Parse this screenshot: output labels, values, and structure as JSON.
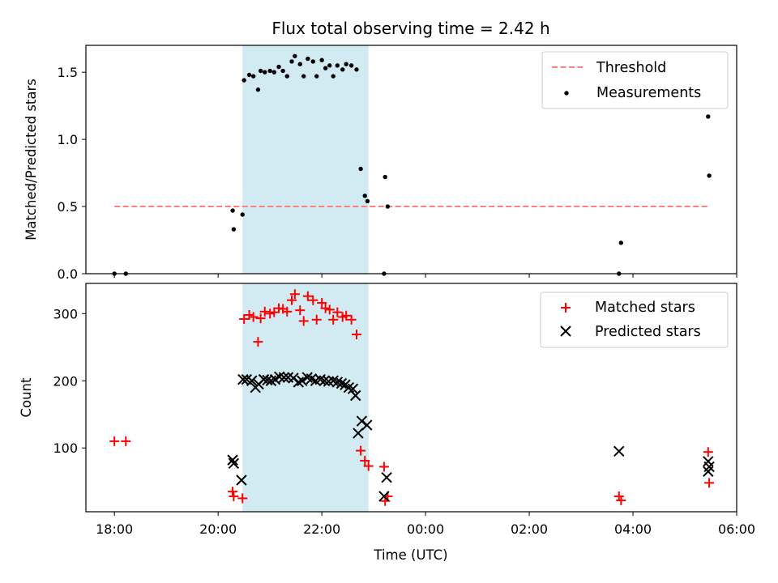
{
  "chart_data": [
    {
      "type": "scatter",
      "title": "Flux total observing time = 2.42 h",
      "xlabel": "",
      "ylabel": "Matched/Predicted stars",
      "ylim": [
        0,
        1.7
      ],
      "yticks": [
        "0.0",
        "0.5",
        "1.0",
        "1.5"
      ],
      "legend": {
        "placement": "top-right",
        "entries": [
          "Threshold",
          "Measurements"
        ]
      },
      "shaded_span_hours": [
        20.47,
        22.9
      ],
      "threshold": {
        "name": "Threshold",
        "value": 0.5,
        "x_range": [
          18.0,
          29.45
        ],
        "color": "#ff7f7f"
      },
      "series": [
        {
          "name": "Measurements",
          "color": "#000000",
          "x": [
            18.0,
            18.22,
            20.28,
            20.3,
            20.47,
            20.5,
            20.6,
            20.68,
            20.77,
            20.82,
            20.9,
            21.0,
            21.08,
            21.17,
            21.25,
            21.33,
            21.42,
            21.48,
            21.58,
            21.65,
            21.73,
            21.83,
            21.9,
            22.0,
            22.07,
            22.15,
            22.22,
            22.3,
            22.4,
            22.47,
            22.57,
            22.67,
            22.75,
            22.83,
            22.88,
            23.2,
            23.22,
            23.27,
            27.73,
            27.77,
            29.45,
            29.47
          ],
          "y": [
            0.0,
            0.0,
            0.47,
            0.33,
            0.44,
            1.44,
            1.48,
            1.47,
            1.37,
            1.51,
            1.5,
            1.51,
            1.5,
            1.54,
            1.51,
            1.47,
            1.58,
            1.62,
            1.56,
            1.47,
            1.6,
            1.58,
            1.47,
            1.59,
            1.53,
            1.55,
            1.47,
            1.55,
            1.52,
            1.56,
            1.55,
            1.52,
            0.78,
            0.58,
            0.54,
            0.0,
            0.72,
            0.5,
            0.0,
            0.23,
            1.17,
            0.73
          ]
        }
      ]
    },
    {
      "type": "scatter",
      "title": "",
      "xlabel": "Time (UTC)",
      "ylabel": "Count",
      "ylim": [
        5,
        345
      ],
      "yticks": [
        "100",
        "200",
        "300"
      ],
      "xticks": [
        "18:00",
        "20:00",
        "22:00",
        "00:00",
        "02:00",
        "04:00",
        "06:00"
      ],
      "legend": {
        "placement": "top-right",
        "entries": [
          "Matched stars",
          "Predicted stars"
        ]
      },
      "shaded_span_hours": [
        20.47,
        22.9
      ],
      "series": [
        {
          "name": "Matched stars",
          "marker": "plus",
          "color": "#ff0000",
          "x": [
            18.0,
            18.22,
            20.28,
            20.3,
            20.47,
            20.5,
            20.6,
            20.68,
            20.77,
            20.82,
            20.9,
            21.0,
            21.08,
            21.17,
            21.25,
            21.33,
            21.42,
            21.48,
            21.58,
            21.65,
            21.73,
            21.83,
            21.9,
            22.0,
            22.07,
            22.15,
            22.22,
            22.3,
            22.4,
            22.47,
            22.57,
            22.67,
            22.75,
            22.83,
            22.9,
            23.2,
            23.22,
            23.27,
            27.73,
            27.77,
            29.45,
            29.47
          ],
          "y": [
            110,
            110,
            35,
            28,
            25,
            292,
            298,
            295,
            258,
            293,
            303,
            300,
            302,
            308,
            307,
            303,
            320,
            329,
            305,
            289,
            326,
            320,
            291,
            316,
            308,
            306,
            291,
            302,
            295,
            297,
            291,
            269,
            96,
            81,
            73,
            72,
            21,
            28,
            28,
            22,
            94,
            48
          ]
        },
        {
          "name": "Predicted stars",
          "marker": "x",
          "color": "#000000",
          "x": [
            20.28,
            20.3,
            20.45,
            20.48,
            20.55,
            20.65,
            20.72,
            20.78,
            20.88,
            20.95,
            21.02,
            21.1,
            21.18,
            21.27,
            21.35,
            21.45,
            21.55,
            21.62,
            21.72,
            21.8,
            21.88,
            21.97,
            22.05,
            22.13,
            22.22,
            22.3,
            22.38,
            22.45,
            22.52,
            22.6,
            22.65,
            22.7,
            22.77,
            22.87,
            23.2,
            23.25,
            27.73,
            29.45,
            29.47,
            29.45
          ],
          "y": [
            82,
            77,
            52,
            202,
            202,
            200,
            190,
            195,
            202,
            201,
            200,
            202,
            206,
            205,
            205,
            204,
            198,
            200,
            205,
            203,
            200,
            202,
            200,
            199,
            200,
            198,
            196,
            194,
            190,
            188,
            178,
            122,
            140,
            134,
            28,
            56,
            95,
            80,
            72,
            65
          ]
        }
      ]
    }
  ]
}
